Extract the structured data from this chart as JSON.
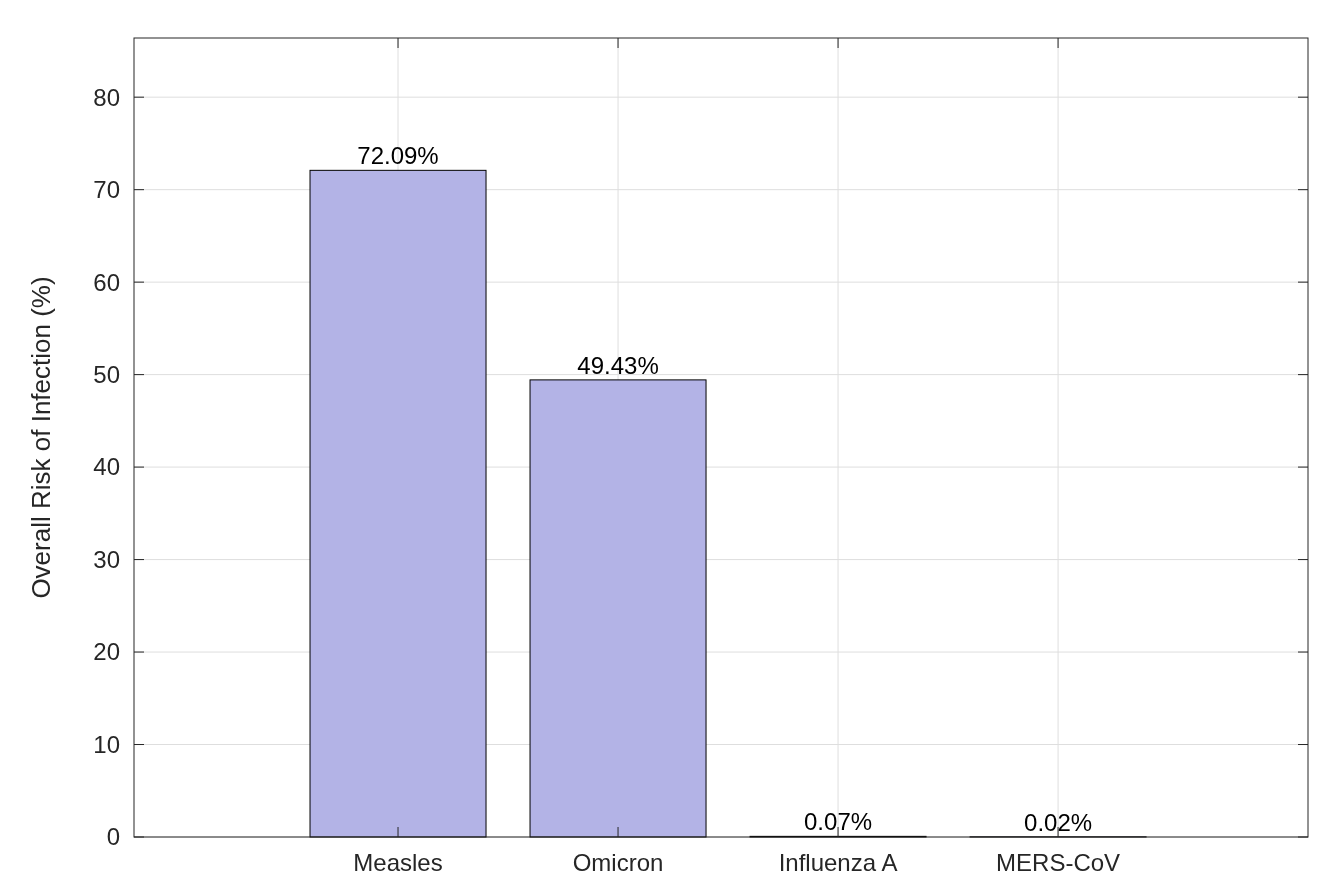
{
  "chart_data": {
    "type": "bar",
    "ylabel": "Overall Risk of Infection (%)",
    "categories": [
      "Measles",
      "Omicron",
      "Influenza A",
      "MERS-CoV"
    ],
    "values": [
      72.09,
      49.43,
      0.07,
      0.02
    ],
    "value_labels": [
      "72.09%",
      "49.43%",
      "0.07%",
      "0.02%"
    ],
    "color": "#b3b3e6",
    "ylim": [
      0,
      86.4
    ],
    "yticks": [
      0,
      10,
      20,
      30,
      40,
      50,
      60,
      70,
      80
    ],
    "grid": true
  }
}
